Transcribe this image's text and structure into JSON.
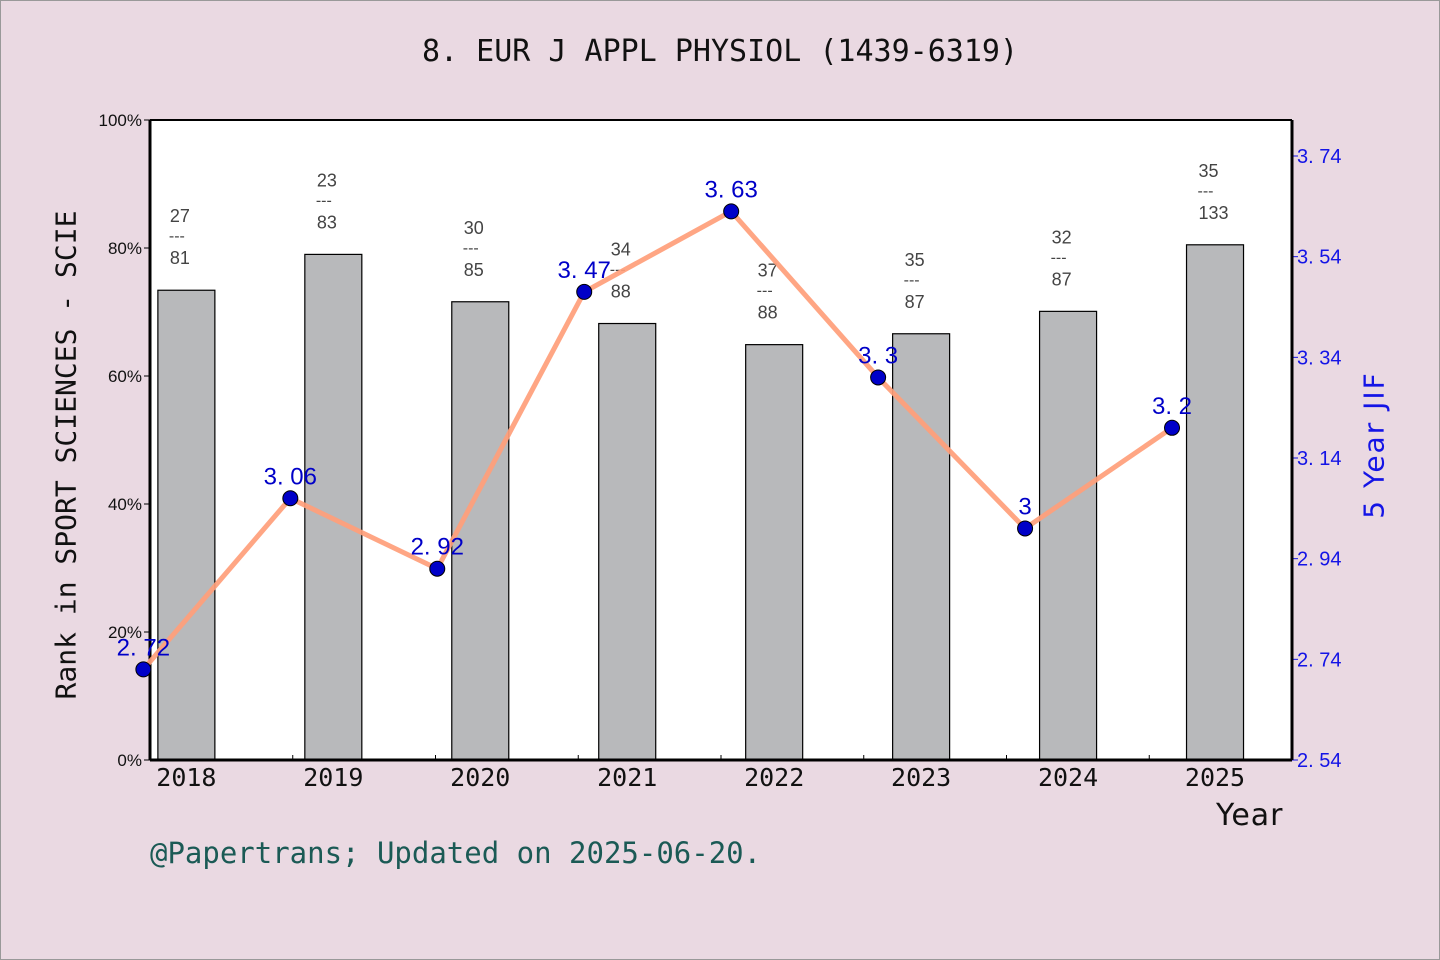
{
  "title": "8. EUR J APPL PHYSIOL (1439-6319)",
  "footer": "@Papertrans; Updated on 2025-06-20.",
  "colors": {
    "background": "#ead9e2",
    "plot_bg": "#ffffff",
    "bar_fill": "#b8b9bb",
    "line": "#ff9e7a",
    "marker": "#0000c8",
    "right_axis": "#1414e6",
    "footer": "#1b5a55",
    "rank_label": "#444444"
  },
  "chart_data": [
    {
      "type": "bar",
      "title": "8. EUR J APPL PHYSIOL (1439-6319)",
      "xlabel": "Year",
      "ylabel": "Rank in SPORT SCIENCES - SCIE",
      "categories": [
        "2018",
        "2019",
        "2020",
        "2021",
        "2022",
        "2023",
        "2024",
        "2025"
      ],
      "values": [
        73.4,
        79.0,
        71.6,
        68.2,
        64.9,
        66.6,
        70.1,
        80.5
      ],
      "unit": "%",
      "ylim": [
        0,
        100
      ],
      "yticks": [
        "0%",
        "20%",
        "40%",
        "60%",
        "80%",
        "100%"
      ],
      "annotations": [
        {
          "rank": "27",
          "total": "81"
        },
        {
          "rank": "23",
          "total": "83"
        },
        {
          "rank": "30",
          "total": "85"
        },
        {
          "rank": "34",
          "total": "88"
        },
        {
          "rank": "37",
          "total": "88"
        },
        {
          "rank": "35",
          "total": "87"
        },
        {
          "rank": "32",
          "total": "87"
        },
        {
          "rank": "35",
          "total": "133"
        }
      ]
    },
    {
      "type": "line",
      "ylabel": "5 Year JIF",
      "axis": "right",
      "categories": [
        "2018",
        "2019",
        "2020",
        "2021",
        "2022",
        "2023",
        "2024",
        "2025"
      ],
      "values": [
        2.72,
        3.06,
        2.92,
        3.47,
        3.63,
        3.3,
        3.0,
        3.2
      ],
      "labels": [
        "2.72",
        "3.06",
        "2.92",
        "3.47",
        "3.63",
        "3.3",
        "3",
        "3.2"
      ],
      "ylim": [
        2.54,
        3.74
      ],
      "yticks": [
        "2.54",
        "2.74",
        "2.94",
        "3.14",
        "3.34",
        "3.54",
        "3.74"
      ]
    }
  ]
}
